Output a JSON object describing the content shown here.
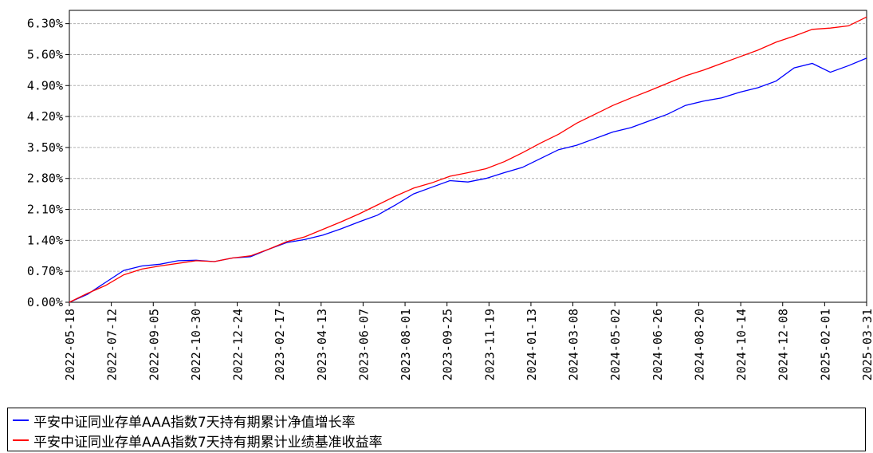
{
  "chart_data": {
    "type": "line",
    "x_ticks": [
      "2022-05-18",
      "2022-07-12",
      "2022-09-05",
      "2022-10-30",
      "2022-12-24",
      "2023-02-17",
      "2023-04-13",
      "2023-06-07",
      "2023-08-01",
      "2023-09-25",
      "2023-11-19",
      "2024-01-13",
      "2024-03-08",
      "2024-05-02",
      "2024-06-26",
      "2024-08-20",
      "2024-10-14",
      "2024-12-08",
      "2025-02-01",
      "2025-03-31"
    ],
    "y_ticks": [
      "0.00%",
      "0.70%",
      "1.40%",
      "2.10%",
      "2.80%",
      "3.50%",
      "4.20%",
      "4.90%",
      "5.60%",
      "6.30%"
    ],
    "ylim": [
      0,
      6.6
    ],
    "y_unit": "%",
    "grid": true,
    "legend_position": "bottom-left",
    "series": [
      {
        "name": "平安中证同业存单AAA指数7天持有期累计净值增长率",
        "color": "#0000ff",
        "values": [
          0.0,
          0.18,
          0.45,
          0.72,
          0.82,
          0.86,
          0.94,
          0.95,
          0.92,
          1.0,
          1.03,
          1.2,
          1.35,
          1.42,
          1.52,
          1.66,
          1.82,
          1.97,
          2.2,
          2.45,
          2.6,
          2.75,
          2.72,
          2.8,
          2.93,
          3.05,
          3.25,
          3.45,
          3.55,
          3.7,
          3.85,
          3.95,
          4.1,
          4.25,
          4.45,
          4.55,
          4.62,
          4.75,
          4.85,
          5.0,
          5.3,
          5.4,
          5.2,
          5.35,
          5.52
        ]
      },
      {
        "name": "平安中证同业存单AAA指数7天持有期累计业绩基准收益率",
        "color": "#ff0000",
        "values": [
          0.0,
          0.2,
          0.38,
          0.62,
          0.75,
          0.82,
          0.88,
          0.94,
          0.92,
          1.0,
          1.05,
          1.2,
          1.37,
          1.48,
          1.65,
          1.82,
          2.0,
          2.2,
          2.4,
          2.58,
          2.7,
          2.85,
          2.93,
          3.02,
          3.18,
          3.38,
          3.6,
          3.8,
          4.05,
          4.25,
          4.45,
          4.62,
          4.78,
          4.95,
          5.12,
          5.25,
          5.4,
          5.55,
          5.7,
          5.88,
          6.02,
          6.17,
          6.2,
          6.25,
          6.45
        ]
      }
    ]
  }
}
